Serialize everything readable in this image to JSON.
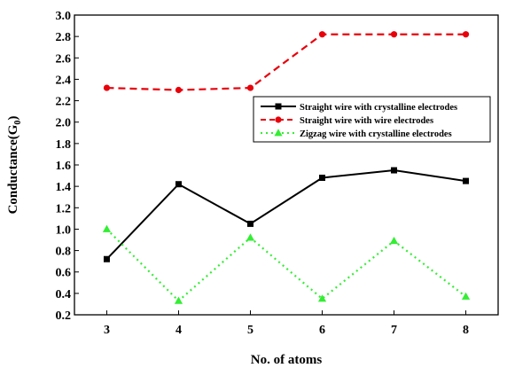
{
  "chart_data": {
    "type": "line",
    "title": "",
    "xlabel": "No. of atoms",
    "ylabel_main": "Conductance(G",
    "ylabel_sub": "0",
    "ylabel_close": ")",
    "xlim": [
      2.55,
      8.45
    ],
    "ylim": [
      0.2,
      3.0
    ],
    "x_ticks": [
      3,
      4,
      5,
      6,
      7,
      8
    ],
    "y_ticks": [
      0.2,
      0.4,
      0.6,
      0.8,
      1.0,
      1.2,
      1.4,
      1.6,
      1.8,
      2.0,
      2.2,
      2.4,
      2.6,
      2.8,
      3.0
    ],
    "y_tick_labels": [
      "0.2",
      "0.4",
      "0.6",
      "0.8",
      "1.0",
      "1.2",
      "1.4",
      "1.6",
      "1.8",
      "2.0",
      "2.2",
      "2.4",
      "2.6",
      "2.8",
      "3.0"
    ],
    "legend_position": "right",
    "grid": false,
    "x": [
      3,
      4,
      5,
      6,
      7,
      8
    ],
    "series": [
      {
        "name": "Straight wire with crystalline electrodes",
        "values": [
          0.72,
          1.42,
          1.05,
          1.48,
          1.55,
          1.45
        ],
        "color": "#000000",
        "marker": "square",
        "line_style": "solid"
      },
      {
        "name": "Straight wire with wire electrodes",
        "values": [
          2.32,
          2.3,
          2.32,
          2.82,
          2.82,
          2.82
        ],
        "color": "#e8000b",
        "marker": "circle",
        "line_style": "dashed"
      },
      {
        "name": "Zigzag wire with crystalline electrodes",
        "values": [
          1.0,
          0.33,
          0.92,
          0.35,
          0.89,
          0.37
        ],
        "color": "#33ee33",
        "marker": "triangle",
        "line_style": "dotted"
      }
    ]
  }
}
